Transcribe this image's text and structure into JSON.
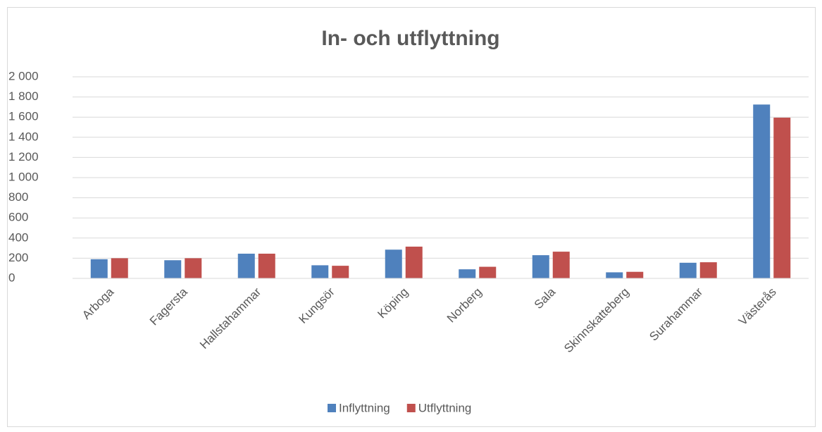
{
  "chart_data": {
    "type": "bar",
    "title": "In- och utflyttning",
    "categories": [
      "Arboga",
      "Fagersta",
      "Hallstahammar",
      "Kungsör",
      "Köping",
      "Norberg",
      "Sala",
      "Skinnskatteberg",
      "Surahammar",
      "Västerås"
    ],
    "series": [
      {
        "name": "Inflyttning",
        "color": "#4f81bd",
        "values": [
          190,
          180,
          245,
          130,
          285,
          90,
          230,
          60,
          155,
          1725
        ]
      },
      {
        "name": "Utflyttning",
        "color": "#c0504d",
        "values": [
          200,
          200,
          245,
          125,
          315,
          115,
          265,
          65,
          160,
          1595
        ]
      }
    ],
    "ylim": [
      0,
      2000
    ],
    "yticks": [
      0,
      200,
      400,
      600,
      800,
      {
        "value": 1000,
        "label": "1 000"
      },
      {
        "value": 1200,
        "label": "1 200"
      },
      {
        "value": 1400,
        "label": "1 400"
      },
      {
        "value": 1600,
        "label": "1 600"
      },
      {
        "value": 1800,
        "label": "1 800"
      },
      {
        "value": 2000,
        "label": "2 000"
      }
    ],
    "grid": true,
    "legend": "bottom"
  }
}
